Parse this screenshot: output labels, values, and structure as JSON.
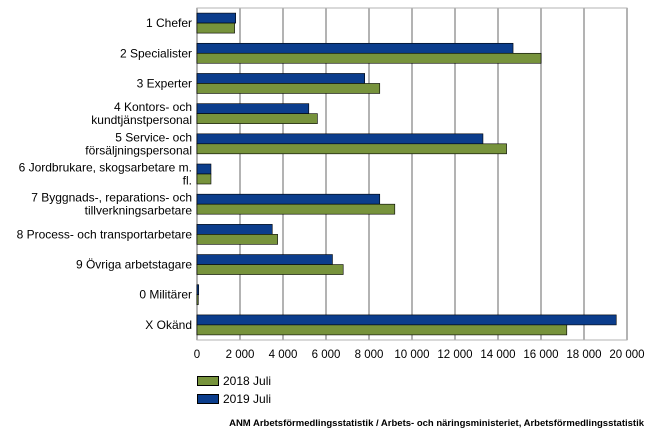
{
  "chart_data": {
    "type": "bar",
    "orientation": "horizontal",
    "categories": [
      "1 Chefer",
      "2 Specialister",
      "3 Experter",
      "4 Kontors- och kundtjänstpersonal",
      "5 Service- och försäljningspersonal",
      "6 Jordbrukare, skogsarbetare m. fl.",
      "7 Byggnads-, reparations- och tillverkningsarbetare",
      "8 Process- och transportarbetare",
      "9 Övriga arbetstagare",
      "0 Militärer",
      "X Okänd"
    ],
    "category_lines": [
      [
        "1 Chefer"
      ],
      [
        "2 Specialister"
      ],
      [
        "3 Experter"
      ],
      [
        "4 Kontors- och",
        "kundtjänstpersonal"
      ],
      [
        "5 Service- och",
        "försäljningspersonal"
      ],
      [
        "6 Jordbrukare, skogsarbetare m.",
        "fl."
      ],
      [
        "7 Byggnads-, reparations- och",
        "tillverkningsarbetare"
      ],
      [
        "8 Process- och transportarbetare"
      ],
      [
        "9 Övriga arbetstagare"
      ],
      [
        "0 Militärer"
      ],
      [
        "X Okänd"
      ]
    ],
    "series": [
      {
        "name": "2019 Juli",
        "color": "#0b3d8c",
        "values": [
          1800,
          14700,
          7800,
          5200,
          13300,
          650,
          8500,
          3500,
          6300,
          80,
          19500
        ]
      },
      {
        "name": "2018 Juli",
        "color": "#77933c",
        "values": [
          1750,
          16000,
          8500,
          5600,
          14400,
          650,
          9200,
          3750,
          6800,
          60,
          17200
        ]
      }
    ],
    "xlim": [
      0,
      20000
    ],
    "xticks": [
      0,
      2000,
      4000,
      6000,
      8000,
      10000,
      12000,
      14000,
      16000,
      18000,
      20000
    ],
    "xtick_labels": [
      "0",
      "2 000",
      "4 000",
      "6 000",
      "8 000",
      "10 000",
      "12 000",
      "14 000",
      "16 000",
      "18 000",
      "20 000"
    ],
    "grid": true,
    "legend": [
      {
        "name": "2018 Juli",
        "color": "#77933c"
      },
      {
        "name": "2019 Juli",
        "color": "#0b3d8c"
      }
    ],
    "legend_position": "bottom-left",
    "source": "ANM Arbetsförmedlingsstatistik / Arbets- och näringsministeriet, Arbetsförmedlingsstatistik"
  }
}
